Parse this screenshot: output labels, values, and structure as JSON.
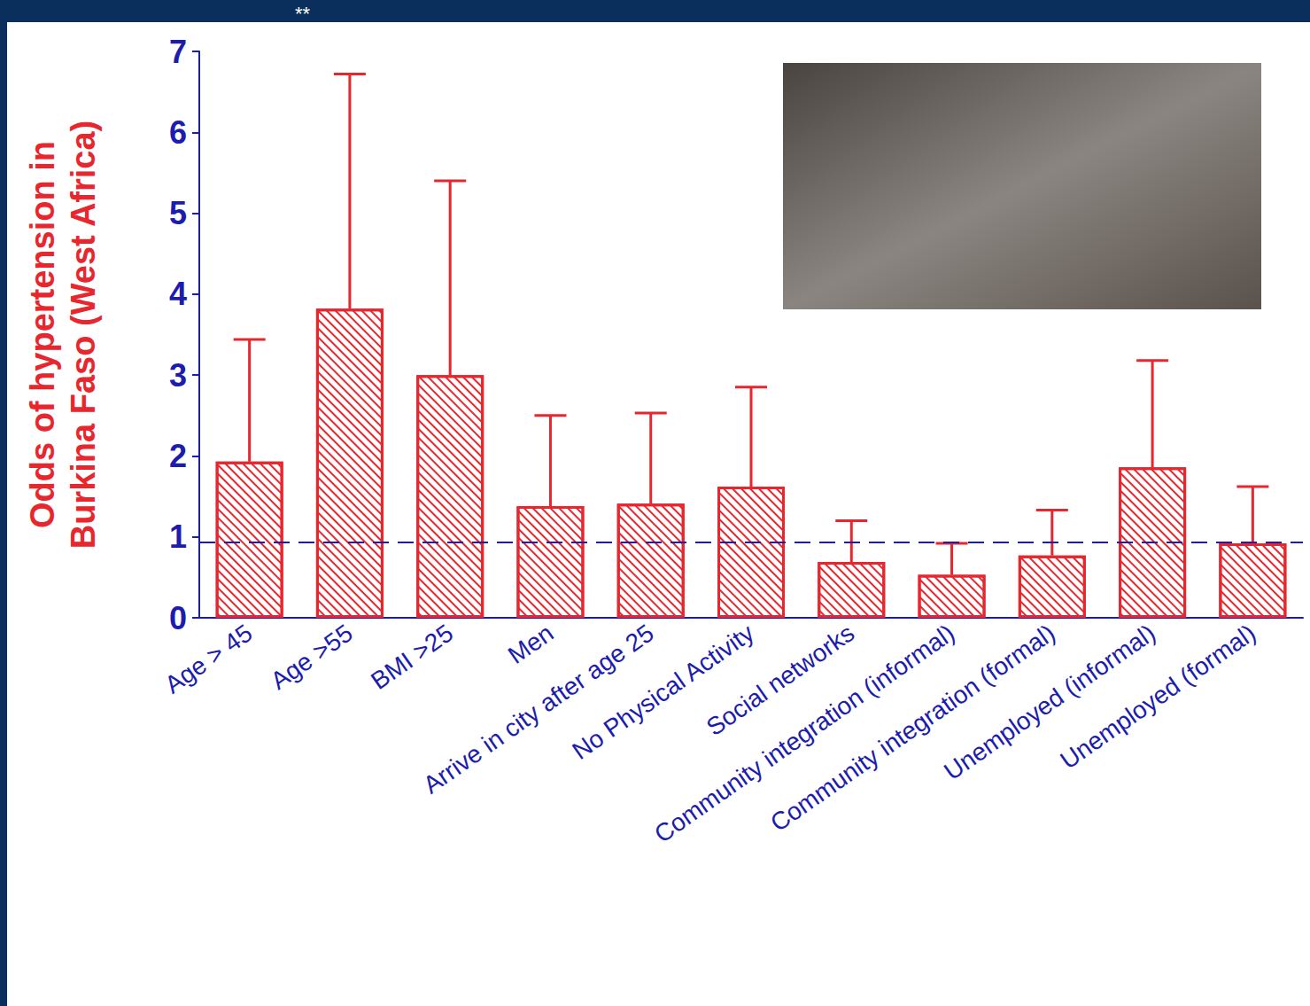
{
  "chart_data": {
    "type": "bar",
    "annotations": [
      "**"
    ],
    "y_label": "Odds of hypertension in Burkina Faso (West Africa)",
    "categories": [
      "Age > 45",
      "Age >55",
      "BMI >25",
      "Men",
      "Arrive in city after age 25",
      "No Physical Activity",
      "Social networks",
      "Community integration (informal)",
      "Community integration (formal)",
      "Unemployed (informal)",
      "Unemployed (formal)"
    ],
    "values": [
      1.93,
      3.82,
      3.0,
      1.38,
      1.41,
      1.62,
      0.69,
      0.53,
      0.77,
      1.86,
      0.92
    ],
    "error_upper": [
      3.44,
      6.72,
      5.4,
      2.5,
      2.53,
      2.85,
      1.2,
      0.92,
      1.33,
      3.18,
      1.62
    ],
    "reference_line": 0.93,
    "color": "#e8262e",
    "ylim": [
      0,
      7
    ],
    "yticks": [
      0,
      1,
      2,
      3,
      4,
      5,
      6,
      7
    ],
    "grid": false
  }
}
